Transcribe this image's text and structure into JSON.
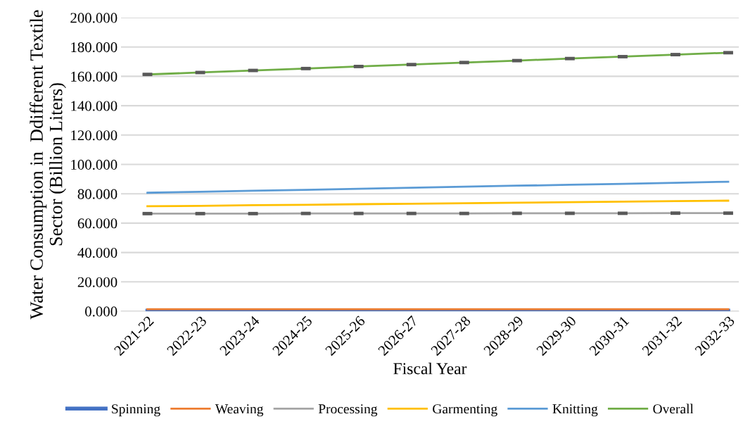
{
  "chart_data": {
    "type": "line",
    "xlabel": "Fiscal Year",
    "ylabel": "Water Consumption in  Ddifferent Textile\nSector (Billion Liters)",
    "categories": [
      "2021-22",
      "2022-23",
      "2023-24",
      "2024-25",
      "2025-26",
      "2026-27",
      "2027-28",
      "2028-29",
      "2029-30",
      "2030-31",
      "2031-32",
      "2032-33"
    ],
    "series": [
      {
        "name": "Spinning",
        "color": "#4472c4",
        "values": [
          0.3,
          0.3,
          0.3,
          0.3,
          0.3,
          0.3,
          0.3,
          0.3,
          0.3,
          0.3,
          0.3,
          0.3
        ]
      },
      {
        "name": "Weaving",
        "color": "#ed7d31",
        "values": [
          1.4,
          1.4,
          1.4,
          1.4,
          1.4,
          1.4,
          1.4,
          1.4,
          1.4,
          1.4,
          1.4,
          1.4
        ]
      },
      {
        "name": "Processing",
        "color": "#a5a5a5",
        "values": [
          66.5,
          66.5,
          66.5,
          66.6,
          66.6,
          66.6,
          66.6,
          66.7,
          66.7,
          66.7,
          66.8,
          66.8
        ],
        "errors": [
          0.5,
          0.5,
          0.5,
          0.5,
          0.5,
          0.5,
          0.5,
          0.5,
          0.5,
          0.5,
          0.5,
          0.5
        ]
      },
      {
        "name": "Garmenting",
        "color": "#ffc000",
        "values": [
          71.5,
          71.8,
          72.2,
          72.5,
          72.9,
          73.2,
          73.6,
          73.9,
          74.3,
          74.6,
          75.0,
          75.3
        ]
      },
      {
        "name": "Knitting",
        "color": "#5b9bd5",
        "values": [
          80.7,
          81.4,
          82.1,
          82.7,
          83.4,
          84.1,
          84.8,
          85.5,
          86.1,
          86.8,
          87.5,
          88.2
        ]
      },
      {
        "name": "Overall",
        "color": "#70ad47",
        "values": [
          161.3,
          162.6,
          164.0,
          165.3,
          166.7,
          168.0,
          169.4,
          170.7,
          172.1,
          173.4,
          174.8,
          176.1
        ],
        "errors": [
          0.5,
          0.5,
          0.5,
          0.5,
          0.5,
          0.5,
          0.5,
          0.5,
          0.5,
          0.5,
          0.5,
          0.5
        ]
      }
    ],
    "ylim": [
      0,
      200
    ],
    "yticks": [
      {
        "value": 0,
        "label": "0.000"
      },
      {
        "value": 20,
        "label": "20.000"
      },
      {
        "value": 40,
        "label": "40.000"
      },
      {
        "value": 60,
        "label": "60.000"
      },
      {
        "value": 80,
        "label": "80.000"
      },
      {
        "value": 100,
        "label": "100.000"
      },
      {
        "value": 120,
        "label": "120.000"
      },
      {
        "value": 140,
        "label": "140.000"
      },
      {
        "value": 160,
        "label": "160.000"
      },
      {
        "value": 180,
        "label": "180.000"
      },
      {
        "value": 200,
        "label": "200.000"
      }
    ],
    "grid": "y",
    "legend": "bottom",
    "marker": "none",
    "line_style": "solid"
  }
}
